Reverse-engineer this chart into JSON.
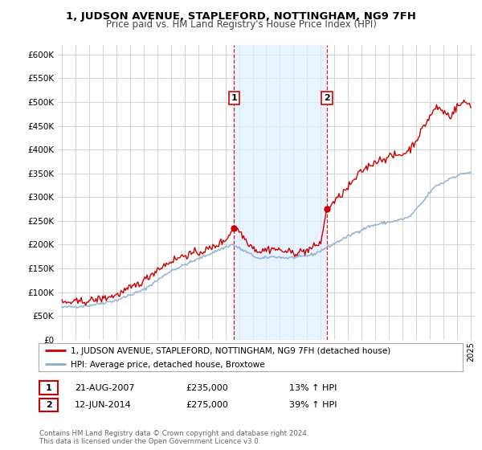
{
  "title": "1, JUDSON AVENUE, STAPLEFORD, NOTTINGHAM, NG9 7FH",
  "subtitle": "Price paid vs. HM Land Registry's House Price Index (HPI)",
  "legend_line1": "1, JUDSON AVENUE, STAPLEFORD, NOTTINGHAM, NG9 7FH (detached house)",
  "legend_line2": "HPI: Average price, detached house, Broxtowe",
  "annotation1_date": "21-AUG-2007",
  "annotation1_price": "£235,000",
  "annotation1_hpi": "13% ↑ HPI",
  "annotation1_year": 2007.63,
  "annotation1_value": 235000,
  "annotation2_date": "12-JUN-2014",
  "annotation2_price": "£275,000",
  "annotation2_hpi": "39% ↑ HPI",
  "annotation2_year": 2014.45,
  "annotation2_value": 275000,
  "house_color": "#cc0000",
  "hpi_color": "#88aacc",
  "background_color": "#ffffff",
  "plot_bg_color": "#ffffff",
  "shade_color": "#ddeeff",
  "vline_color": "#dd0000",
  "ylim": [
    0,
    620000
  ],
  "yticks": [
    0,
    50000,
    100000,
    150000,
    200000,
    250000,
    300000,
    350000,
    400000,
    450000,
    500000,
    550000,
    600000
  ],
  "footer": "Contains HM Land Registry data © Crown copyright and database right 2024.\nThis data is licensed under the Open Government Licence v3.0.",
  "xlim_start": 1995.0,
  "xlim_end": 2025.3
}
